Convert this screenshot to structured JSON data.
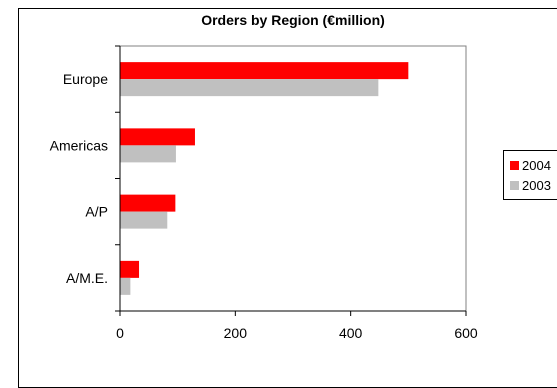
{
  "chart_data": {
    "type": "bar",
    "orientation": "horizontal",
    "title": "Orders by Region  (€million)",
    "categories": [
      "Europe",
      "Americas",
      "A/P",
      "A/M.E."
    ],
    "series": [
      {
        "name": "2004",
        "values": [
          500,
          130,
          96,
          33
        ],
        "color": "#ff0000"
      },
      {
        "name": "2003",
        "values": [
          448,
          97,
          82,
          18
        ],
        "color": "#c0c0c0"
      }
    ],
    "xlim": [
      0,
      600
    ],
    "xticks": [
      "0",
      "200",
      "400",
      "600"
    ],
    "grid": false,
    "legend_position": "right",
    "plot_background": "#ffffff"
  }
}
